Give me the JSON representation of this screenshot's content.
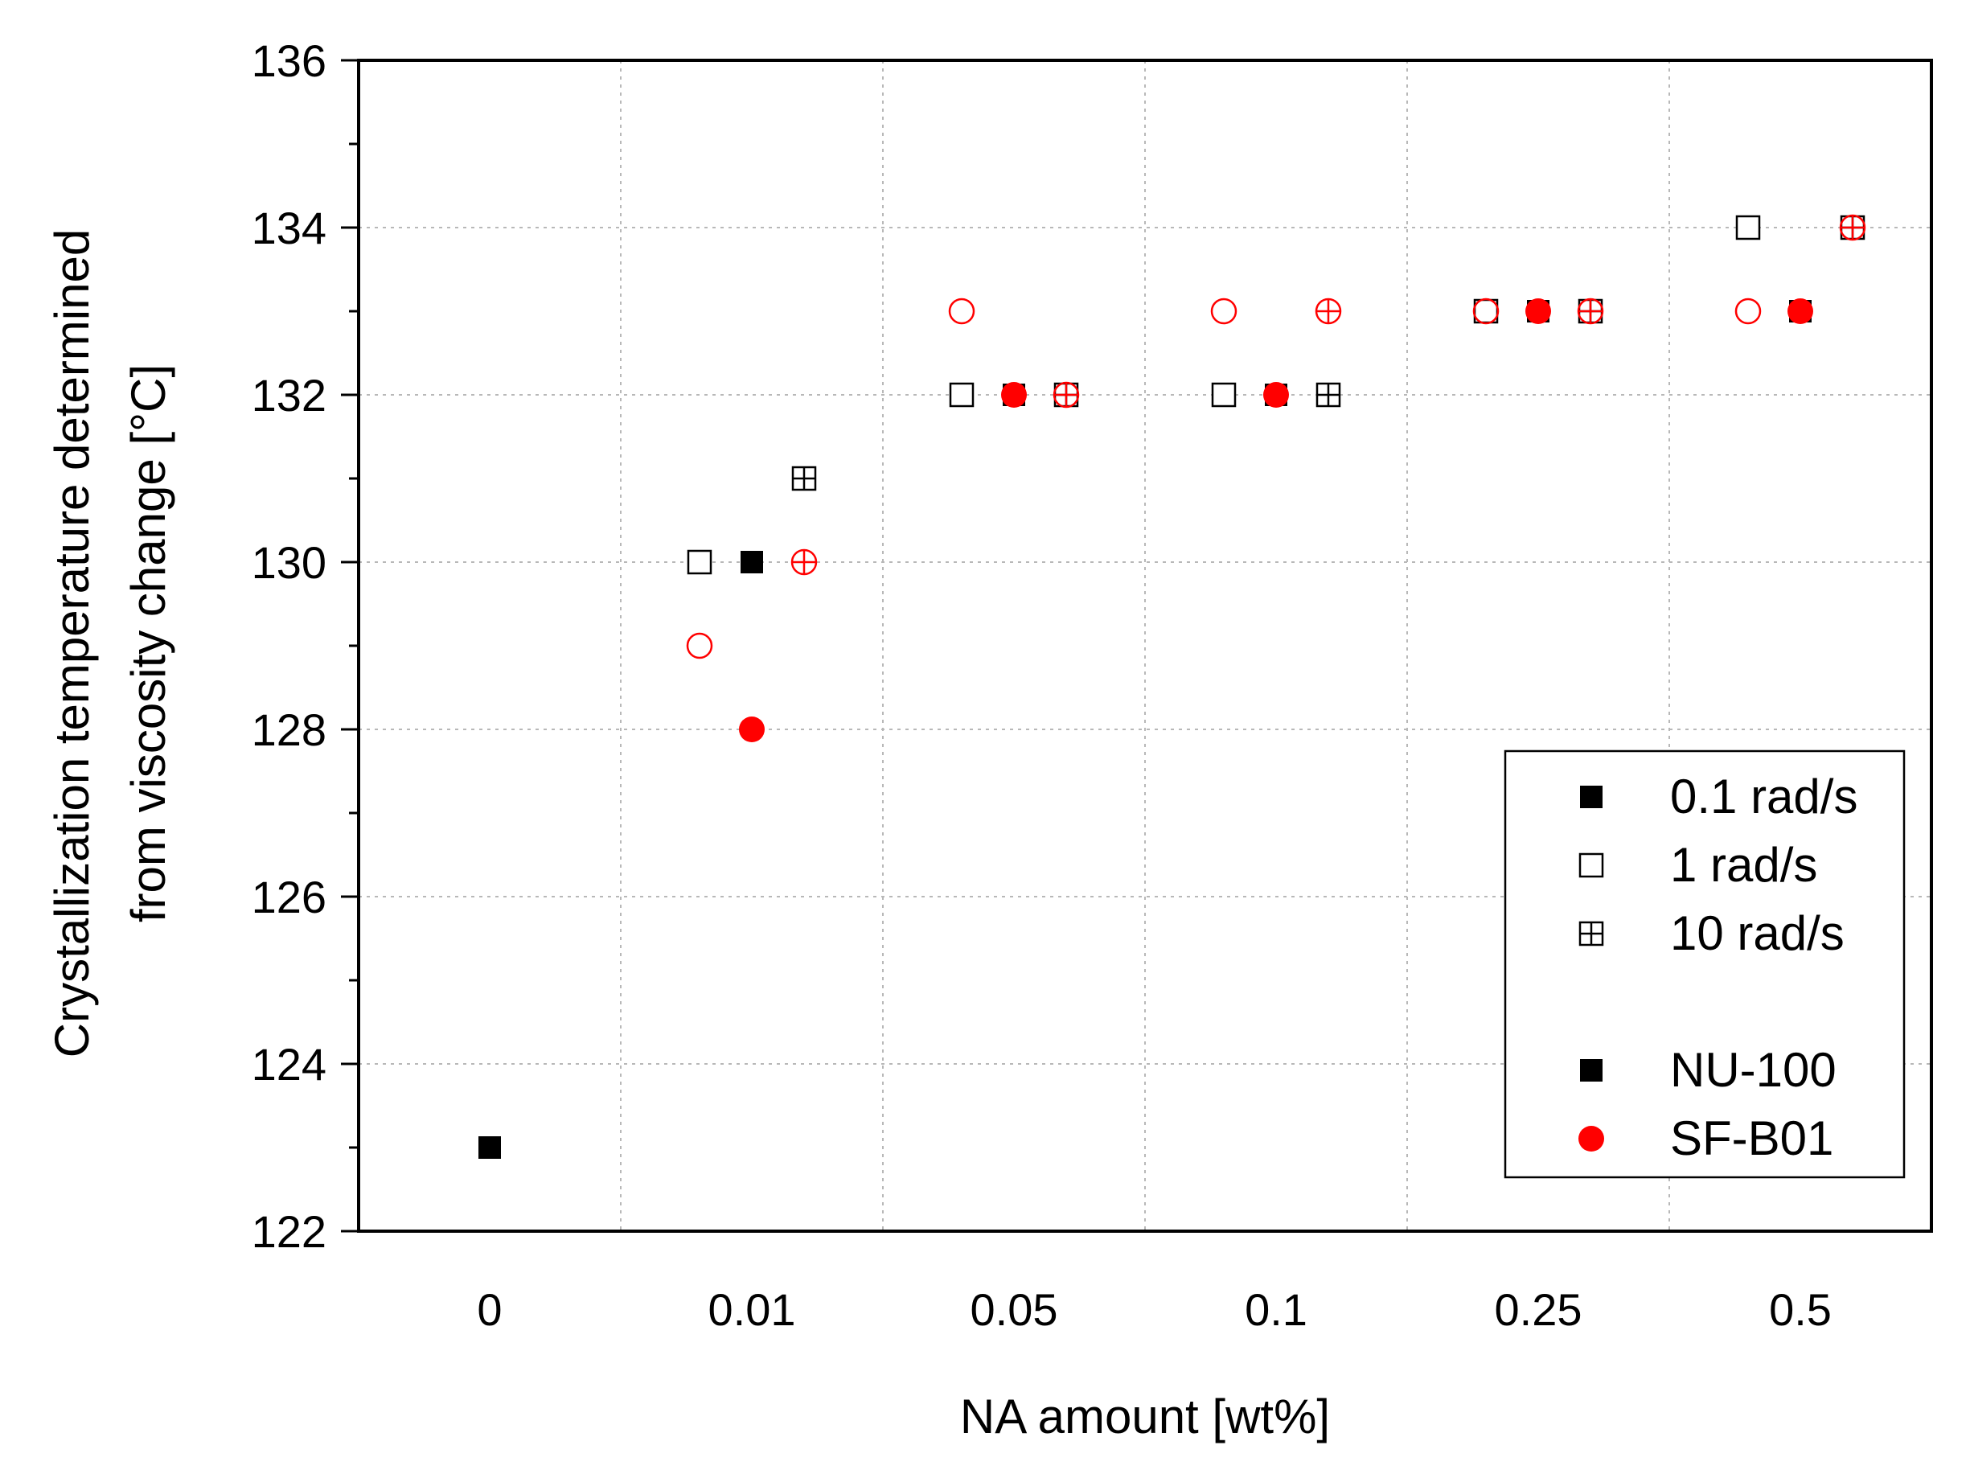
{
  "chart_data": {
    "type": "scatter",
    "title": "",
    "xlabel": "NA amount [wt%]",
    "ylabel_line1": "Crystallization temperature determined",
    "ylabel_line2": "from viscosity change [°C]",
    "categories": [
      "0",
      "0.01",
      "0.05",
      "0.1",
      "0.25",
      "0.5"
    ],
    "ylim": [
      122,
      136
    ],
    "yticks": [
      122,
      124,
      126,
      128,
      130,
      132,
      134,
      136
    ],
    "grid": true,
    "legend_position": "lower-right",
    "series": [
      {
        "name": "NU-100, 0.1 rad/s",
        "color": "#000000",
        "marker": "square-filled",
        "points": [
          {
            "x": "0",
            "y": 123
          },
          {
            "x": "0.01",
            "y": 130
          },
          {
            "x": "0.05",
            "y": 132
          },
          {
            "x": "0.1",
            "y": 132
          },
          {
            "x": "0.25",
            "y": 133
          },
          {
            "x": "0.5",
            "y": 133
          }
        ]
      },
      {
        "name": "NU-100, 1 rad/s",
        "color": "#000000",
        "marker": "square-open",
        "points": [
          {
            "x": "0.01",
            "y": 130
          },
          {
            "x": "0.05",
            "y": 132
          },
          {
            "x": "0.1",
            "y": 132
          },
          {
            "x": "0.25",
            "y": 133
          },
          {
            "x": "0.5",
            "y": 134
          }
        ]
      },
      {
        "name": "NU-100, 10 rad/s",
        "color": "#000000",
        "marker": "square-plus",
        "points": [
          {
            "x": "0.01",
            "y": 131
          },
          {
            "x": "0.05",
            "y": 132
          },
          {
            "x": "0.1",
            "y": 132
          },
          {
            "x": "0.25",
            "y": 133
          },
          {
            "x": "0.5",
            "y": 134
          }
        ]
      },
      {
        "name": "SF-B01, 0.1 rad/s",
        "color": "#ff0000",
        "marker": "circle-filled",
        "points": [
          {
            "x": "0.01",
            "y": 128
          },
          {
            "x": "0.05",
            "y": 132
          },
          {
            "x": "0.1",
            "y": 132
          },
          {
            "x": "0.25",
            "y": 133
          },
          {
            "x": "0.5",
            "y": 133
          }
        ]
      },
      {
        "name": "SF-B01, 1 rad/s",
        "color": "#ff0000",
        "marker": "circle-open",
        "points": [
          {
            "x": "0.01",
            "y": 129
          },
          {
            "x": "0.05",
            "y": 133
          },
          {
            "x": "0.1",
            "y": 133
          },
          {
            "x": "0.25",
            "y": 133
          },
          {
            "x": "0.5",
            "y": 133
          }
        ]
      },
      {
        "name": "SF-B01, 10 rad/s",
        "color": "#ff0000",
        "marker": "circle-plus",
        "points": [
          {
            "x": "0.01",
            "y": 130
          },
          {
            "x": "0.05",
            "y": 132
          },
          {
            "x": "0.1",
            "y": 133
          },
          {
            "x": "0.25",
            "y": 133
          },
          {
            "x": "0.5",
            "y": 134
          }
        ]
      }
    ],
    "legend": [
      {
        "label": "0.1 rad/s",
        "marker": "square-filled",
        "color": "#000000"
      },
      {
        "label": "1 rad/s",
        "marker": "square-open",
        "color": "#000000"
      },
      {
        "label": "10 rad/s",
        "marker": "square-plus",
        "color": "#000000"
      },
      {
        "label": "NU-100",
        "marker": "square-filled",
        "color": "#000000"
      },
      {
        "label": "SF-B01",
        "marker": "circle-filled",
        "color": "#ff0000"
      }
    ]
  }
}
